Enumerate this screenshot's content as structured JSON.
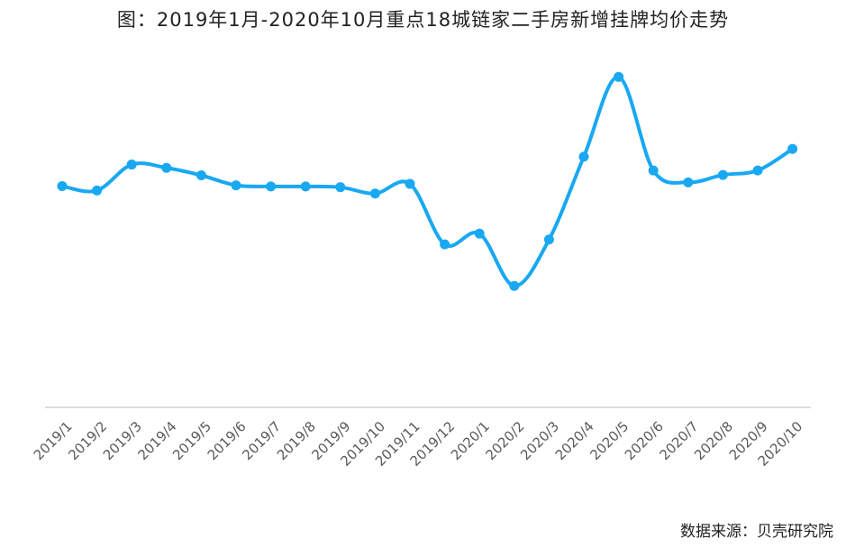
{
  "page": {
    "title": "图：2019年1月-2020年10月重点18城链家二手房新增挂牌均价走势",
    "source": "数据来源：贝壳研究院"
  },
  "colors": {
    "line": "#19A8F2",
    "axis": "#d0d0d0",
    "text": "#5a5a5a"
  },
  "chart_data": {
    "type": "line",
    "title": "图：2019年1月-2020年10月重点18城链家二手房新增挂牌均价走势",
    "xlabel": "",
    "ylabel": "",
    "y_axis_visible": false,
    "grid": false,
    "legend": "none",
    "ylim": [
      0,
      100
    ],
    "categories": [
      "2019/1",
      "2019/2",
      "2019/3",
      "2019/4",
      "2019/5",
      "2019/6",
      "2019/7",
      "2019/8",
      "2019/9",
      "2019/10",
      "2019/11",
      "2019/12",
      "2020/1",
      "2020/2",
      "2020/3",
      "2020/4",
      "2020/5",
      "2020/6",
      "2020/7",
      "2020/8",
      "2020/9",
      "2020/10"
    ],
    "series": [
      {
        "values": [
          59.6,
          58.4,
          65.4,
          64.5,
          62.5,
          59.8,
          59.5,
          59.5,
          59.3,
          57.6,
          60.2,
          43.9,
          46.8,
          32.7,
          45.2,
          67.5,
          89.0,
          63.8,
          60.6,
          62.6,
          63.8,
          69.6
        ]
      }
    ]
  }
}
